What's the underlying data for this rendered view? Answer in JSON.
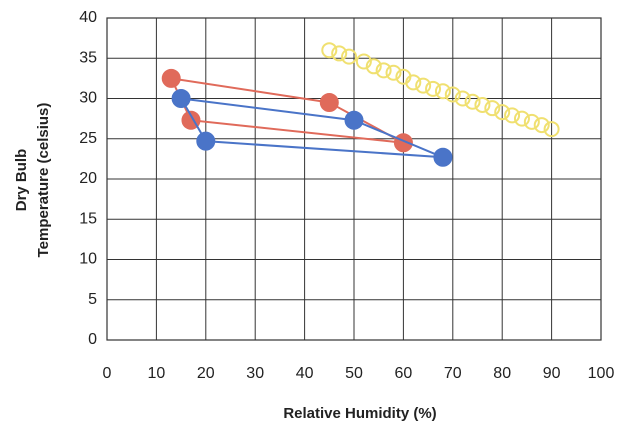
{
  "chart_data": {
    "type": "scatter",
    "x_label": "Relative Humidity (%)",
    "y_label": [
      "Dry Bulb",
      "Temperature (celsius)"
    ],
    "xlim": [
      0,
      100
    ],
    "xticks": [
      0,
      10,
      20,
      30,
      40,
      50,
      60,
      70,
      80,
      90,
      100
    ],
    "ylim": [
      0,
      40
    ],
    "yticks": [
      0,
      5,
      10,
      15,
      20,
      25,
      30,
      35,
      40
    ],
    "grid": true,
    "series": [
      {
        "color": "#e06a5a",
        "marker": "filled",
        "line": true,
        "closed": true,
        "x": [
          45,
          13,
          17,
          60
        ],
        "values": [
          29.5,
          32.5,
          27.3,
          24.5
        ]
      },
      {
        "color": "#4a74c8",
        "marker": "filled",
        "line": true,
        "closed": true,
        "x": [
          15,
          50,
          68,
          20
        ],
        "values": [
          30,
          27.3,
          22.7,
          24.7
        ]
      },
      {
        "color": "#f0e070",
        "marker": "open",
        "line": false,
        "closed": false,
        "x": [
          45,
          47,
          49,
          52,
          54,
          56,
          58,
          60,
          62,
          64,
          66,
          68,
          70,
          72,
          74,
          76,
          78,
          80,
          82,
          84,
          86,
          88,
          90
        ],
        "values": [
          36,
          35.6,
          35.2,
          34.6,
          34,
          33.5,
          33.2,
          32.7,
          32,
          31.6,
          31.2,
          30.9,
          30.5,
          30,
          29.6,
          29.2,
          28.8,
          28.3,
          27.9,
          27.5,
          27.1,
          26.7,
          26.2
        ]
      }
    ]
  }
}
